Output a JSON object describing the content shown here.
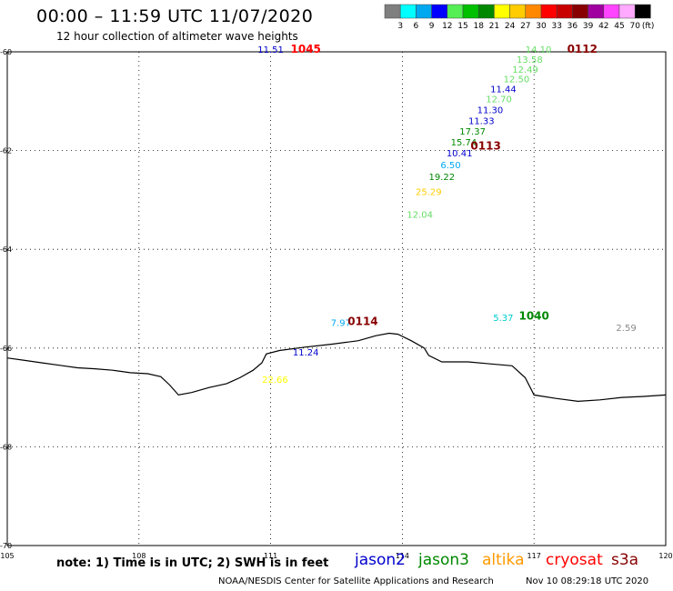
{
  "header": {
    "title": "00:00 – 11:59 UTC 11/07/2020",
    "subtitle": "12 hour collection of altimeter wave heights"
  },
  "legend": {
    "unit": "(ft)",
    "bins": [
      {
        "label": "3",
        "color": "#7f7f7f"
      },
      {
        "label": "6",
        "color": "#00ffff"
      },
      {
        "label": "9",
        "color": "#00a8f0"
      },
      {
        "label": "12",
        "color": "#0000ff"
      },
      {
        "label": "15",
        "color": "#55ee55"
      },
      {
        "label": "18",
        "color": "#00c000"
      },
      {
        "label": "21",
        "color": "#008800"
      },
      {
        "label": "24",
        "color": "#ffff00"
      },
      {
        "label": "27",
        "color": "#ffcc00"
      },
      {
        "label": "30",
        "color": "#ff8800"
      },
      {
        "label": "33",
        "color": "#ff0000"
      },
      {
        "label": "36",
        "color": "#c80000"
      },
      {
        "label": "39",
        "color": "#880000"
      },
      {
        "label": "42",
        "color": "#a000a0"
      },
      {
        "label": "45",
        "color": "#ff44ff"
      },
      {
        "label": "70",
        "color": "#ffaaff"
      },
      {
        "label": "",
        "color": "#000000"
      }
    ]
  },
  "map": {
    "lon_range": [
      105,
      120
    ],
    "lat_range": [
      -70,
      -60
    ],
    "lon_ticks": [
      "105",
      "108",
      "111",
      "114",
      "117",
      "120"
    ],
    "lat_ticks": [
      "-60",
      "-62",
      "-64",
      "-66",
      "-68",
      "-70"
    ],
    "grid": "dotted",
    "coastline": [
      [
        105.0,
        -66.2
      ],
      [
        105.4,
        -66.25
      ],
      [
        105.8,
        -66.3
      ],
      [
        106.2,
        -66.35
      ],
      [
        106.6,
        -66.4
      ],
      [
        107.0,
        -66.42
      ],
      [
        107.4,
        -66.45
      ],
      [
        107.8,
        -66.5
      ],
      [
        108.2,
        -66.52
      ],
      [
        108.5,
        -66.58
      ],
      [
        108.7,
        -66.75
      ],
      [
        108.9,
        -66.95
      ],
      [
        109.2,
        -66.9
      ],
      [
        109.6,
        -66.8
      ],
      [
        110.0,
        -66.72
      ],
      [
        110.3,
        -66.6
      ],
      [
        110.6,
        -66.45
      ],
      [
        110.8,
        -66.3
      ],
      [
        110.9,
        -66.12
      ],
      [
        111.2,
        -66.05
      ],
      [
        111.8,
        -65.98
      ],
      [
        112.4,
        -65.92
      ],
      [
        113.0,
        -65.85
      ],
      [
        113.4,
        -65.75
      ],
      [
        113.7,
        -65.7
      ],
      [
        113.9,
        -65.72
      ],
      [
        114.2,
        -65.85
      ],
      [
        114.5,
        -66.0
      ],
      [
        114.6,
        -66.15
      ],
      [
        114.9,
        -66.28
      ],
      [
        115.5,
        -66.28
      ],
      [
        116.0,
        -66.32
      ],
      [
        116.5,
        -66.36
      ],
      [
        116.8,
        -66.6
      ],
      [
        117.0,
        -66.95
      ],
      [
        117.5,
        -67.02
      ],
      [
        118.0,
        -67.08
      ],
      [
        118.5,
        -67.05
      ],
      [
        119.0,
        -67.0
      ],
      [
        119.5,
        -66.98
      ],
      [
        120.0,
        -66.95
      ]
    ],
    "wave_heights": [
      {
        "value": "11.51",
        "lon": 111.0,
        "lat": -60.02,
        "color": "#0000cc"
      },
      {
        "value": "14.10",
        "lon": 117.1,
        "lat": -60.02,
        "color": "#66dd66"
      },
      {
        "value": "13.58",
        "lon": 116.9,
        "lat": -60.22,
        "color": "#66dd66"
      },
      {
        "value": "12.49",
        "lon": 116.8,
        "lat": -60.42,
        "color": "#66dd66"
      },
      {
        "value": "12.50",
        "lon": 116.6,
        "lat": -60.62,
        "color": "#66dd66"
      },
      {
        "value": "11.44",
        "lon": 116.3,
        "lat": -60.82,
        "color": "#0000cc"
      },
      {
        "value": "12.70",
        "lon": 116.2,
        "lat": -61.02,
        "color": "#66dd66"
      },
      {
        "value": "11.30",
        "lon": 116.0,
        "lat": -61.24,
        "color": "#0000cc"
      },
      {
        "value": "11.33",
        "lon": 115.8,
        "lat": -61.46,
        "color": "#0000cc"
      },
      {
        "value": "17.37",
        "lon": 115.6,
        "lat": -61.68,
        "color": "#008800"
      },
      {
        "value": "15.74",
        "lon": 115.4,
        "lat": -61.9,
        "color": "#008800"
      },
      {
        "value": "10.41",
        "lon": 115.3,
        "lat": -62.12,
        "color": "#0000cc"
      },
      {
        "value": "6.50",
        "lon": 115.1,
        "lat": -62.36,
        "color": "#00a8f0"
      },
      {
        "value": "19.22",
        "lon": 114.9,
        "lat": -62.6,
        "color": "#008800"
      },
      {
        "value": "25.29",
        "lon": 114.6,
        "lat": -62.9,
        "color": "#ffcc00"
      },
      {
        "value": "12.04",
        "lon": 114.4,
        "lat": -63.36,
        "color": "#66dd66"
      },
      {
        "value": "7.97",
        "lon": 112.6,
        "lat": -65.55,
        "color": "#00a8f0"
      },
      {
        "value": "11.24",
        "lon": 111.8,
        "lat": -66.15,
        "color": "#0000cc"
      },
      {
        "value": "22.66",
        "lon": 111.1,
        "lat": -66.7,
        "color": "#ffff00"
      },
      {
        "value": "5.37",
        "lon": 116.3,
        "lat": -65.45,
        "color": "#00cccc"
      },
      {
        "value": "2.59",
        "lon": 119.1,
        "lat": -65.65,
        "color": "#888888"
      }
    ],
    "time_labels": [
      {
        "value": "1045",
        "lon": 111.8,
        "lat": -60.02,
        "color": "#ff0000"
      },
      {
        "value": "0112",
        "lon": 118.1,
        "lat": -60.02,
        "color": "#880000"
      },
      {
        "value": "0113",
        "lon": 115.9,
        "lat": -61.98,
        "color": "#880000"
      },
      {
        "value": "0114",
        "lon": 113.1,
        "lat": -65.53,
        "color": "#880000"
      },
      {
        "value": "1040",
        "lon": 117.0,
        "lat": -65.42,
        "color": "#008800"
      }
    ]
  },
  "footer": {
    "note": "note: 1) Time is in UTC; 2) SWH is in feet",
    "satellites": [
      {
        "name": "jason2",
        "color": "#0000cc"
      },
      {
        "name": "jason3",
        "color": "#008800"
      },
      {
        "name": "altika",
        "color": "#ff9900"
      },
      {
        "name": "cryosat",
        "color": "#ff0000"
      },
      {
        "name": "s3a",
        "color": "#880000"
      }
    ],
    "credit": "NOAA/NESDIS Center for Satellite Applications and Research",
    "timestamp": "Nov 10 08:29:18 UTC 2020"
  }
}
